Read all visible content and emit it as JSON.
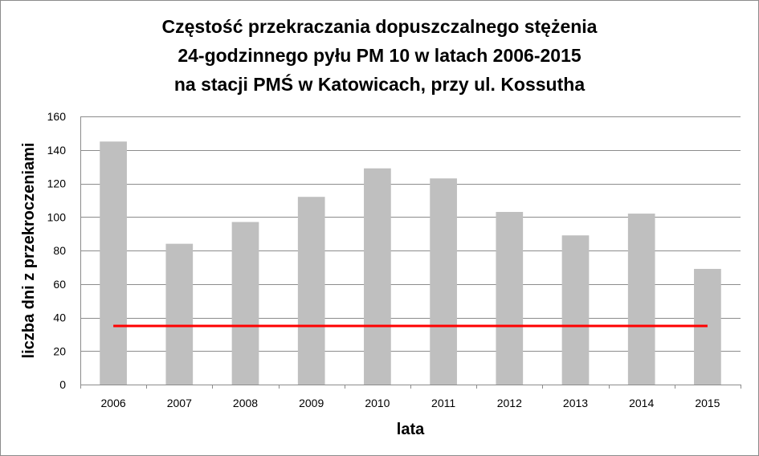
{
  "chart_data": {
    "type": "bar",
    "title_lines": [
      "Częstość przekraczania dopuszczalnego stężenia",
      "24-godzinnego pyłu PM 10 w latach 2006-2015",
      "na stacji PMŚ w Katowicach, przy ul. Kossutha"
    ],
    "xlabel": "lata",
    "ylabel": "liczba dni z przekroczeniami",
    "categories": [
      "2006",
      "2007",
      "2008",
      "2009",
      "2010",
      "2011",
      "2012",
      "2013",
      "2014",
      "2015"
    ],
    "values": [
      145,
      84,
      97,
      112,
      129,
      123,
      103,
      89,
      102,
      69
    ],
    "ylim": [
      0,
      160
    ],
    "yticks": [
      0,
      20,
      40,
      60,
      80,
      100,
      120,
      140,
      160
    ],
    "reference_line": {
      "value": 35,
      "color": "#ff0000"
    },
    "bar_color": "#bfbfbf",
    "grid": true,
    "legend": "none"
  }
}
